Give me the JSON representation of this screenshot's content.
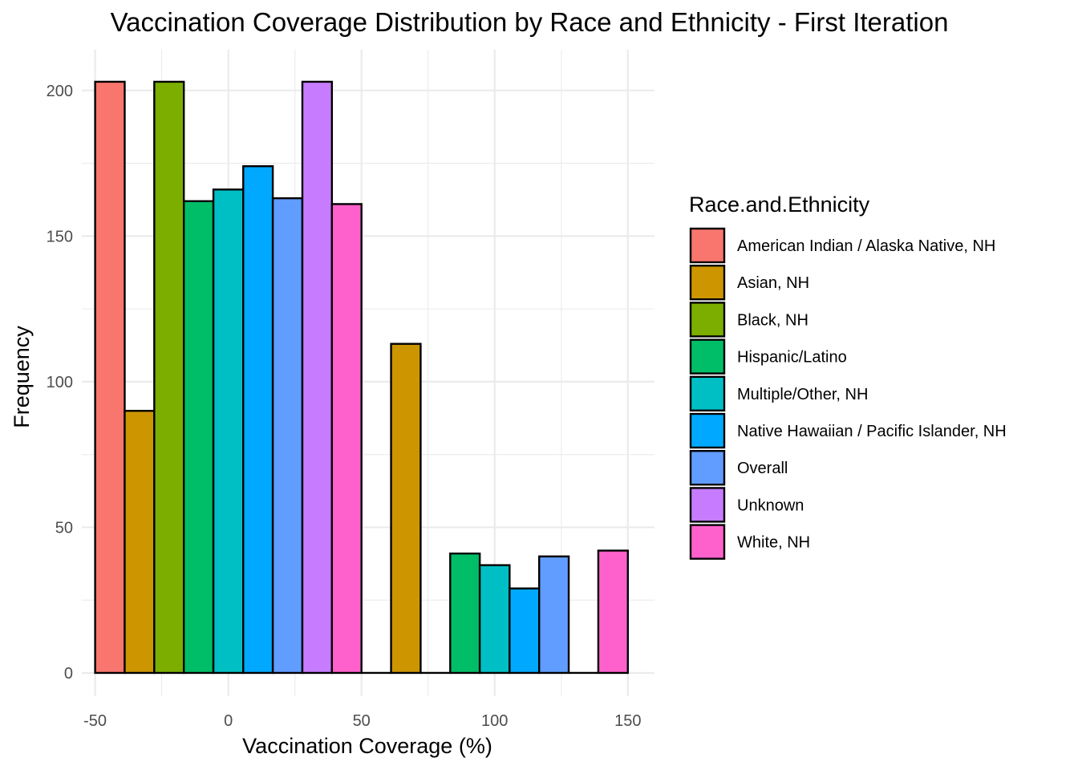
{
  "chart_data": {
    "type": "bar",
    "title": "Vaccination Coverage Distribution by Race and Ethnicity - First Iteration",
    "xlabel": "Vaccination Coverage (%)",
    "ylabel": "Frequency",
    "xlim": [
      -55,
      160
    ],
    "ylim": [
      -8,
      214
    ],
    "x_ticks": [
      -50,
      0,
      50,
      100,
      150
    ],
    "x_tick_labels": [
      "-50",
      "0",
      "50",
      "100",
      "150"
    ],
    "y_ticks": [
      0,
      50,
      100,
      150,
      200
    ],
    "y_tick_labels": [
      "0",
      "50",
      "100",
      "150",
      "200"
    ],
    "grid": true,
    "legend": {
      "title": "Race.and.Ethnicity",
      "position": "right",
      "entries": [
        {
          "label": "American Indian / Alaska Native, NH",
          "color": "#F8766D"
        },
        {
          "label": "Asian, NH",
          "color": "#CD9600"
        },
        {
          "label": "Black, NH",
          "color": "#7CAE00"
        },
        {
          "label": "Hispanic/Latino",
          "color": "#00BE67"
        },
        {
          "label": "Multiple/Other, NH",
          "color": "#00BFC4"
        },
        {
          "label": "Native Hawaiian / Pacific Islander, NH",
          "color": "#00A9FF"
        },
        {
          "label": "Overall",
          "color": "#619CFF"
        },
        {
          "label": "Unknown",
          "color": "#C77CFF"
        },
        {
          "label": "White, NH",
          "color": "#FF61CC"
        }
      ]
    },
    "bin_width": 11.1,
    "bars": [
      {
        "x0": -50.0,
        "x1": -38.9,
        "value": 203,
        "group": "American Indian / Alaska Native, NH"
      },
      {
        "x0": -38.9,
        "x1": -27.8,
        "value": 90,
        "group": "Asian, NH"
      },
      {
        "x0": -27.8,
        "x1": -16.7,
        "value": 203,
        "group": "Black, NH"
      },
      {
        "x0": -16.7,
        "x1": -5.6,
        "value": 162,
        "group": "Hispanic/Latino"
      },
      {
        "x0": -5.6,
        "x1": 5.6,
        "value": 166,
        "group": "Multiple/Other, NH"
      },
      {
        "x0": 5.6,
        "x1": 16.7,
        "value": 174,
        "group": "Native Hawaiian / Pacific Islander, NH"
      },
      {
        "x0": 16.7,
        "x1": 27.8,
        "value": 163,
        "group": "Overall"
      },
      {
        "x0": 27.8,
        "x1": 38.9,
        "value": 203,
        "group": "Unknown"
      },
      {
        "x0": 38.9,
        "x1": 50.0,
        "value": 161,
        "group": "White, NH"
      },
      {
        "x0": 50.0,
        "x1": 61.1,
        "value": 0,
        "group": "White, NH"
      },
      {
        "x0": 61.1,
        "x1": 72.2,
        "value": 113,
        "group": "Asian, NH"
      },
      {
        "x0": 72.2,
        "x1": 83.3,
        "value": 0,
        "group": "Asian, NH"
      },
      {
        "x0": 83.3,
        "x1": 94.4,
        "value": 41,
        "group": "Hispanic/Latino"
      },
      {
        "x0": 94.4,
        "x1": 105.6,
        "value": 37,
        "group": "Multiple/Other, NH"
      },
      {
        "x0": 105.6,
        "x1": 116.7,
        "value": 29,
        "group": "Native Hawaiian / Pacific Islander, NH"
      },
      {
        "x0": 116.7,
        "x1": 127.8,
        "value": 40,
        "group": "Overall"
      },
      {
        "x0": 127.8,
        "x1": 138.9,
        "value": 0,
        "group": "Overall"
      },
      {
        "x0": 138.9,
        "x1": 150.0,
        "value": 42,
        "group": "White, NH"
      }
    ]
  }
}
